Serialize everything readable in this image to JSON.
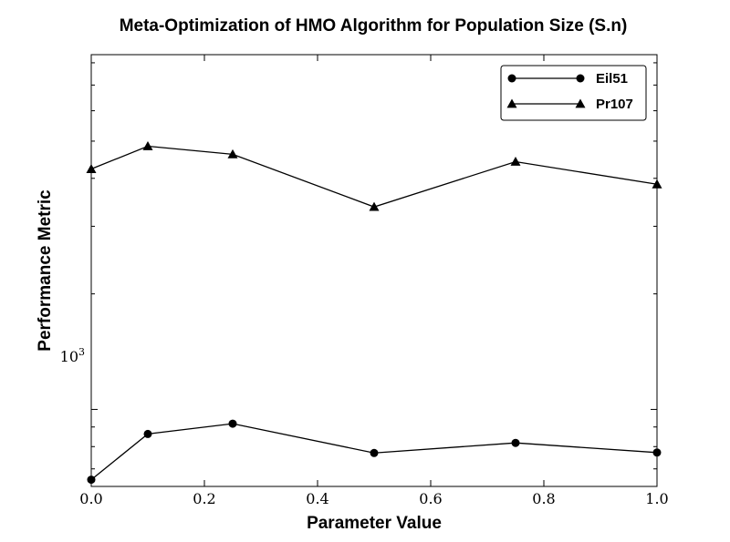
{
  "chart_data": {
    "type": "line",
    "title": "Meta-Optimization of HMO Algorithm for Population Size (S.n)",
    "xlabel": "Parameter Value",
    "ylabel": "Performance Metric",
    "x": [
      0.0,
      0.1,
      0.25,
      0.5,
      0.75,
      1.0
    ],
    "xlim": [
      0.0,
      1.0
    ],
    "xticks": [
      "0.0",
      "0.2",
      "0.4",
      "0.6",
      "0.8",
      "1.0"
    ],
    "yscale": "log",
    "ylim": [
      630,
      8400
    ],
    "ytick_label": {
      "base": "10",
      "exp": "3"
    },
    "legend_position": "top-right",
    "grid": false,
    "series": [
      {
        "name": "Eil51",
        "marker": "circle",
        "color": "#000000",
        "values": [
          656,
          863,
          918,
          770,
          818,
          772
        ]
      },
      {
        "name": "Pr107",
        "marker": "triangle",
        "color": "#000000",
        "values": [
          4230,
          4850,
          4620,
          3370,
          4420,
          3860
        ]
      }
    ]
  }
}
